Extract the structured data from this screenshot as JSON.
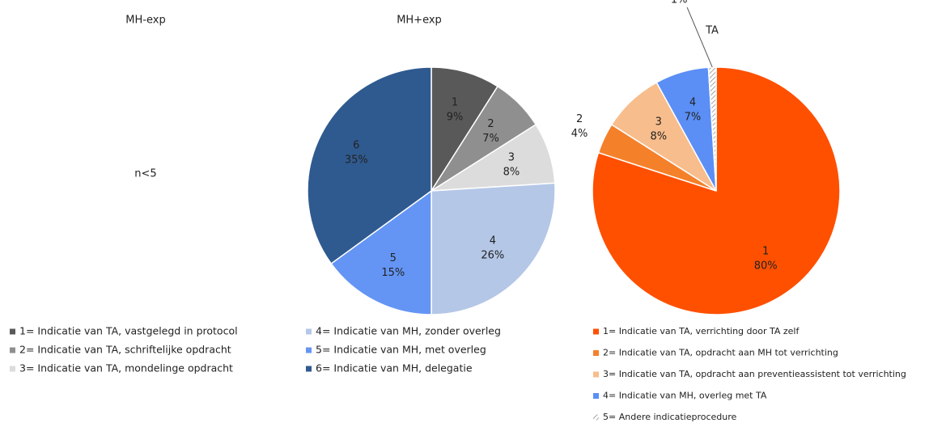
{
  "chart_data": [
    {
      "type": "pie",
      "title": "MH-exp",
      "annotation": "n<5"
    },
    {
      "type": "pie",
      "title": "MH+exp",
      "categories": [
        "1",
        "2",
        "3",
        "4",
        "5",
        "6"
      ],
      "values": [
        9,
        7,
        8,
        26,
        15,
        35
      ],
      "value_labels": [
        "9%",
        "7%",
        "8%",
        "26%",
        "15%",
        "35%"
      ],
      "colors": [
        "#595959",
        "#8f8f8f",
        "#dcdcdc",
        "#b4c7e7",
        "#6495f5",
        "#2f5a8f"
      ],
      "legend": [
        "1= Indicatie van TA, vastgelegd in protocol",
        "2= Indicatie van TA, schriftelijke opdracht",
        "3= Indicatie van TA, mondelinge opdracht",
        "4= Indicatie van MH, zonder overleg",
        "5= Indicatie van MH, met overleg",
        "6= Indicatie van MH, delegatie"
      ]
    },
    {
      "type": "pie",
      "title": "TA",
      "categories": [
        "1",
        "2",
        "3",
        "4",
        "5"
      ],
      "values": [
        80,
        4,
        8,
        7,
        1
      ],
      "value_labels": [
        "80%",
        "4%",
        "8%",
        "7%",
        "1%"
      ],
      "colors": [
        "#ff5000",
        "#f5802a",
        "#f8bd8c",
        "#5b8ff5",
        "#ffffff"
      ],
      "hatched": [
        false,
        false,
        false,
        false,
        true
      ],
      "legend": [
        "1= Indicatie van TA, verrichting door TA zelf",
        "2= Indicatie van TA, opdracht aan MH tot verrichting",
        "3= Indicatie van TA, opdracht aan preventieassistent tot verrichting",
        "4= Indicatie van MH, overleg met TA",
        "5= Andere indicatieprocedure"
      ]
    }
  ]
}
